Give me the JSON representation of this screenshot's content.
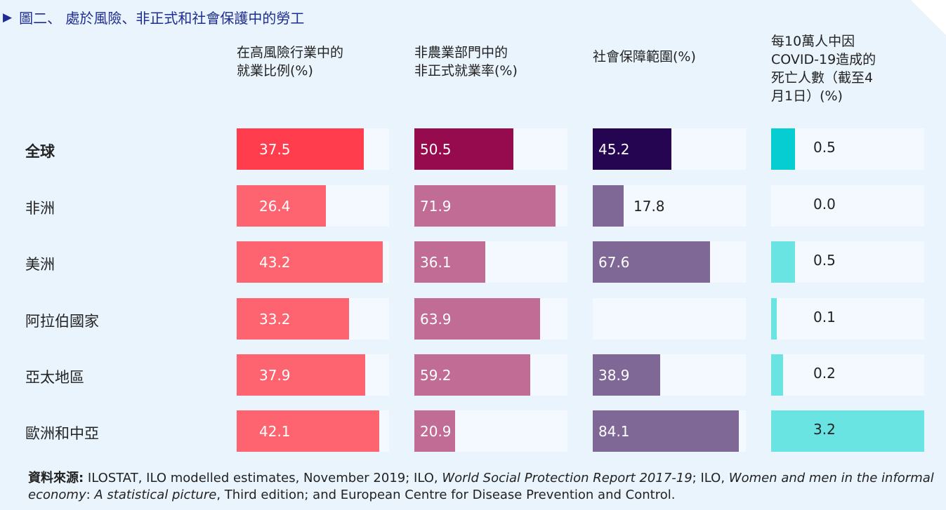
{
  "title": "圖二、 處於風險、非正式和社會保護中的勞工",
  "source": {
    "label": "資料來源:",
    "t1": " ILOSTAT, ILO modelled estimates, November 2019; ILO, ",
    "i1": "World Social Protection Report 2017-19",
    "t2": "; ILO, ",
    "i2": "Women and men in the informal economy",
    "t3": ": ",
    "i3": "A statistical picture",
    "t4": ", Third edition; and European Centre for Disease Prevention and Control."
  },
  "colors": {
    "c1_global": "#ff3d4c",
    "c1": "#fe6470",
    "c2_global": "#960b4e",
    "c2": "#c06c95",
    "c3_global": "#250552",
    "c3": "#7f6895",
    "c4_global": "#05cdd1",
    "c4": "#6ae3e3"
  },
  "chart_data": {
    "type": "bar",
    "title": "圖二、 處於風險、非正式和社會保護中的勞工",
    "categories": [
      "全球",
      "非洲",
      "美洲",
      "阿拉伯國家",
      "亞太地區",
      "歐洲和中亞"
    ],
    "series": [
      {
        "name": "在高風險行業中的就業比例(%)",
        "name_lines": [
          "在高風險行業中的",
          "就業比例(%)"
        ],
        "values": [
          37.5,
          26.4,
          43.2,
          33.2,
          37.9,
          42.1
        ],
        "labels": [
          "37.5",
          "26.4",
          "43.2",
          "33.2",
          "37.9",
          "42.1"
        ],
        "max": 45
      },
      {
        "name": "非農業部門中的非正式就業率(%)",
        "name_lines": [
          "非農業部門中的",
          "非正式就業率(%)"
        ],
        "values": [
          50.5,
          71.9,
          36.1,
          63.9,
          59.2,
          20.9
        ],
        "labels": [
          "50.5",
          "71.9",
          "36.1",
          "63.9",
          "59.2",
          "20.9"
        ],
        "max": 78
      },
      {
        "name": "社會保障範圍(%)",
        "name_lines": [
          "社會保障範圍(%)"
        ],
        "values": [
          45.2,
          17.8,
          67.6,
          null,
          38.9,
          84.1
        ],
        "labels": [
          "45.2",
          "17.8",
          "67.6",
          "",
          "38.9",
          "84.1"
        ],
        "max": 88
      },
      {
        "name": "每10萬人中因COVID-19造成的死亡人數（截至4月1日）(%)",
        "name_lines": [
          "每10萬人中因",
          "COVID-19造成的",
          "死亡人數（截至4",
          "月1日）(%)"
        ],
        "values": [
          0.5,
          0.0,
          0.5,
          0.1,
          0.2,
          3.2
        ],
        "labels": [
          "0.5",
          "0.0",
          "0.5",
          "0.1",
          "0.2",
          "3.2"
        ],
        "max": 3.2
      }
    ]
  }
}
